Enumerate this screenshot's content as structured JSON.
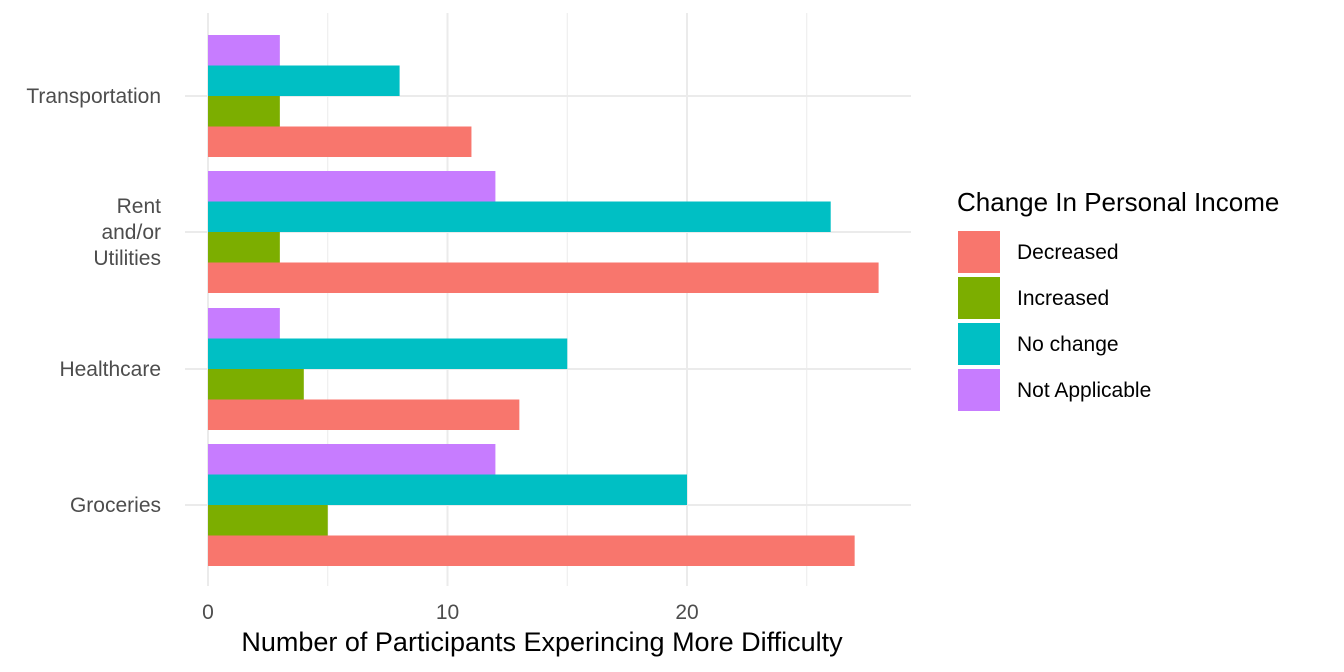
{
  "chart_data": {
    "type": "bar",
    "orientation": "horizontal",
    "categories": [
      "Groceries",
      "Healthcare",
      "Rent and/or Utilities",
      "Transportation"
    ],
    "category_label_lines": [
      [
        "Groceries"
      ],
      [
        "Healthcare"
      ],
      [
        "Rent",
        "and/or",
        "Utilities"
      ],
      [
        "Transportation"
      ]
    ],
    "series": [
      {
        "name": "Decreased",
        "color": "#F8766D",
        "values": [
          27,
          13,
          28,
          11
        ]
      },
      {
        "name": "Increased",
        "color": "#7CAE00",
        "values": [
          5,
          4,
          3,
          3
        ]
      },
      {
        "name": "No change",
        "color": "#00BFC4",
        "values": [
          20,
          15,
          26,
          8
        ]
      },
      {
        "name": "Not Applicable",
        "color": "#C77CFF",
        "values": [
          12,
          3,
          12,
          3
        ]
      }
    ],
    "xlabel": "Number of Participants Experincing More Difficulty",
    "ylabel": "",
    "xlim": [
      0,
      29.4
    ],
    "x_ticks": [
      0,
      10,
      20
    ],
    "grid": true,
    "legend": {
      "title": "Change In Personal Income",
      "position": "right"
    },
    "grid_color": "#ebebeb"
  }
}
